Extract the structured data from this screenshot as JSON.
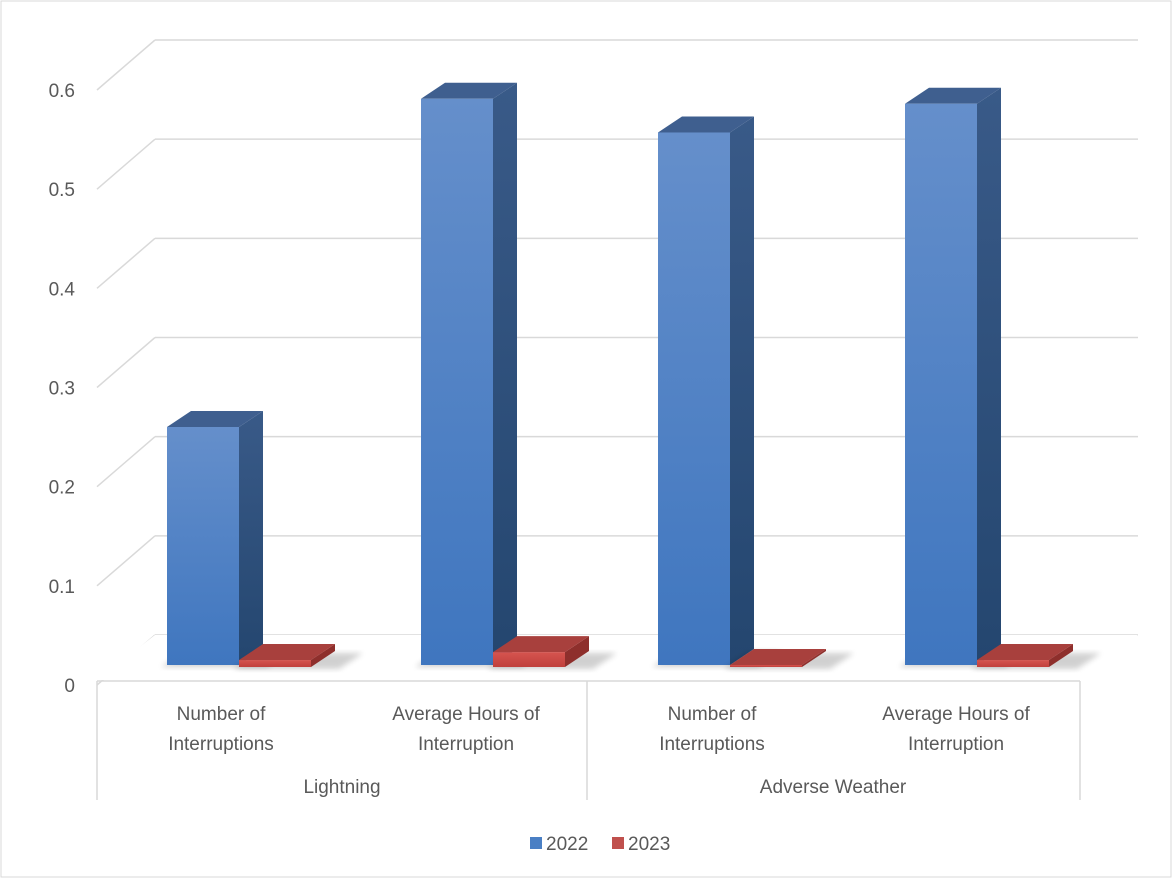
{
  "chart_data": {
    "type": "bar",
    "three_d": true,
    "title": "",
    "xlabel": "",
    "ylabel": "",
    "ylim": [
      0,
      0.6
    ],
    "yticks": [
      "0",
      "0.1",
      "0.2",
      "0.3",
      "0.4",
      "0.5",
      "0.6"
    ],
    "grid": true,
    "legend_position": "bottom",
    "groups": [
      {
        "label": "Lightning",
        "categories": [
          "Number of Interruptions",
          "Average Hours of Interruption"
        ]
      },
      {
        "label": "Adverse Weather",
        "categories": [
          "Number of Interruptions",
          "Average Hours of Interruption"
        ]
      }
    ],
    "categories": [
      [
        "Number of",
        "Interruptions"
      ],
      [
        "Average Hours of",
        "Interruption"
      ],
      [
        "Number of",
        "Interruptions"
      ],
      [
        "Average Hours of",
        "Interruption"
      ]
    ],
    "series": [
      {
        "name": "2022",
        "color": "#4a7fc4",
        "values": [
          0.24,
          0.571,
          0.537,
          0.566
        ]
      },
      {
        "name": "2023",
        "color": "#c0504d",
        "values": [
          0.007,
          0.015,
          0.002,
          0.007
        ]
      }
    ]
  }
}
